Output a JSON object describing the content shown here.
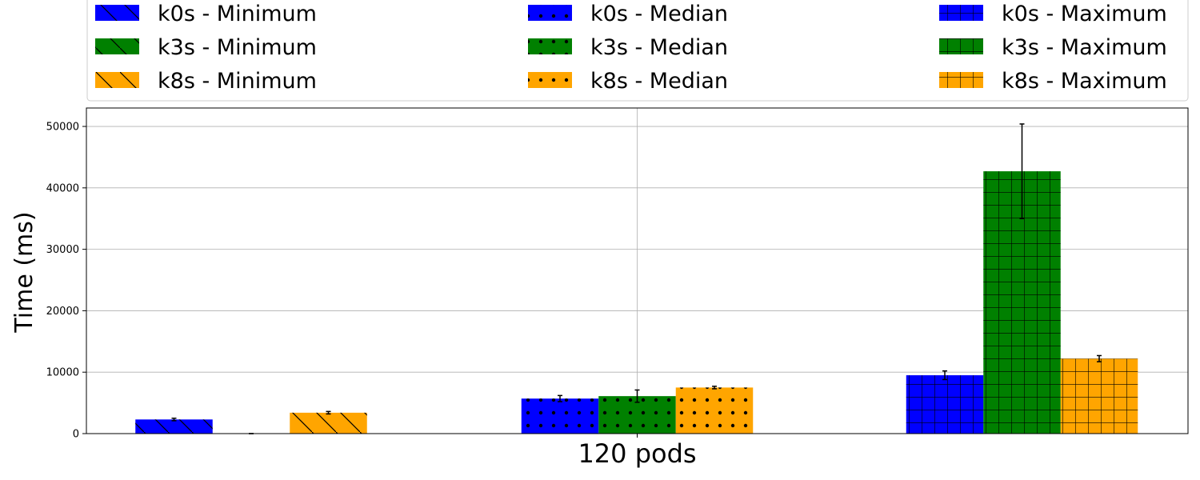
{
  "chart_data": {
    "type": "bar",
    "title": "",
    "xlabel": "",
    "ylabel": "Time (ms)",
    "categories": [
      "120 pods"
    ],
    "ylim": [
      0,
      53000
    ],
    "yticks": [
      0,
      10000,
      20000,
      30000,
      40000,
      50000
    ],
    "grid": true,
    "legend_position": "top",
    "colors": {
      "k0s": "#0000ff",
      "k3s": "#008000",
      "k8s": "#ffa500"
    },
    "series": [
      {
        "name": "k0s - Minimum",
        "distribution": "k0s",
        "stat": "Minimum",
        "hatch": "diagonal",
        "value": 2300,
        "error": 200
      },
      {
        "name": "k3s - Minimum",
        "distribution": "k3s",
        "stat": "Minimum",
        "hatch": "diagonal",
        "value": 0,
        "error": 0
      },
      {
        "name": "k8s - Minimum",
        "distribution": "k8s",
        "stat": "Minimum",
        "hatch": "diagonal",
        "value": 3400,
        "error": 200
      },
      {
        "name": "k0s - Median",
        "distribution": "k0s",
        "stat": "Median",
        "hatch": "dots",
        "value": 5700,
        "error": 500
      },
      {
        "name": "k3s - Median",
        "distribution": "k3s",
        "stat": "Median",
        "hatch": "dots",
        "value": 6100,
        "error": 1000
      },
      {
        "name": "k8s - Median",
        "distribution": "k8s",
        "stat": "Median",
        "hatch": "dots",
        "value": 7500,
        "error": 200
      },
      {
        "name": "k0s - Maximum",
        "distribution": "k0s",
        "stat": "Maximum",
        "hatch": "grid",
        "value": 9500,
        "error": 700
      },
      {
        "name": "k3s - Maximum",
        "distribution": "k3s",
        "stat": "Maximum",
        "hatch": "grid",
        "value": 42700,
        "error": 7700
      },
      {
        "name": "k8s - Maximum",
        "distribution": "k8s",
        "stat": "Maximum",
        "hatch": "grid",
        "value": 12200,
        "error": 500
      }
    ]
  }
}
